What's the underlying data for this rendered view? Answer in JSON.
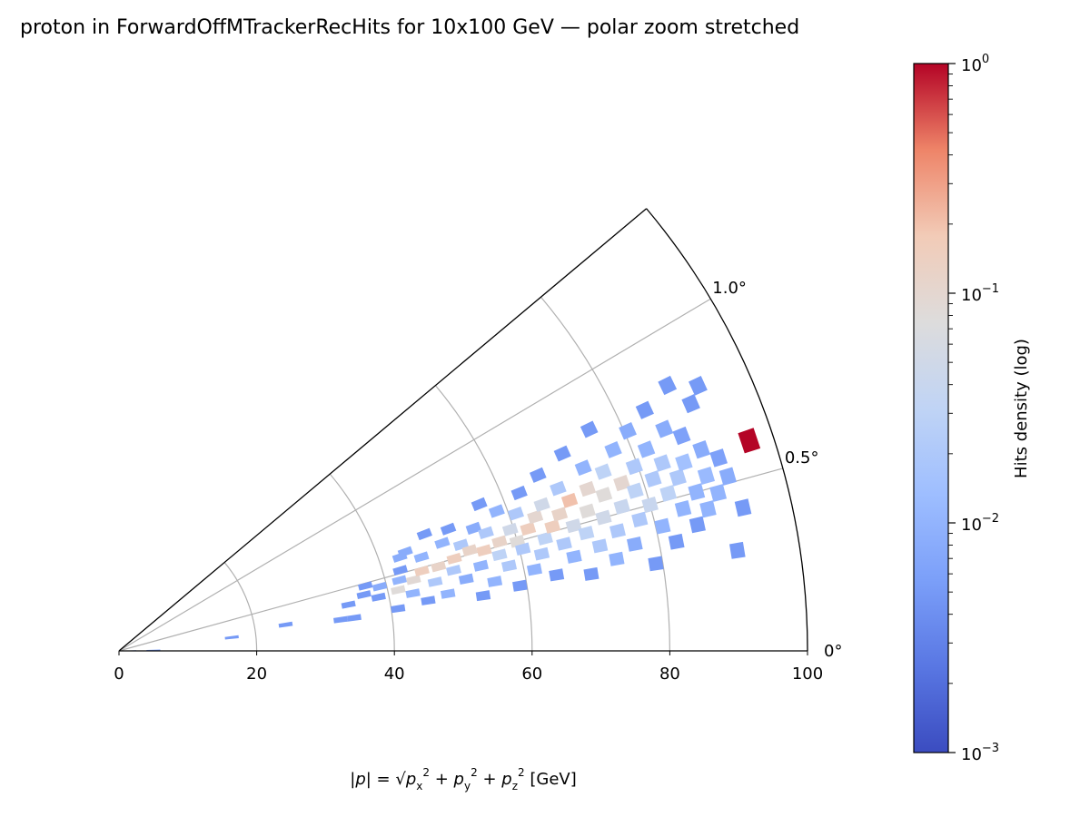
{
  "chart_data": {
    "type": "heatmap",
    "projection": "polar",
    "title": "proton in ForwardOffMTrackerRecHits for 10x100 GeV — polar zoom stretched",
    "xlabel_text": "|p| = √(px² + py² + pz²) [GeV]",
    "r_range": [
      0,
      100
    ],
    "theta_range_deg": [
      0,
      1.3
    ],
    "r_ticks": [
      "0",
      "20",
      "40",
      "60",
      "80",
      "100"
    ],
    "theta_ticks": [
      "0°",
      "0.5°",
      "1.0°"
    ],
    "grid": true,
    "colormap": "coolwarm",
    "colorbar": {
      "label": "Hits density (log)",
      "scale": "log",
      "range": [
        0.001,
        1
      ],
      "tick_labels": [
        "10^-3",
        "10^-2",
        "10^-1",
        "10^0"
      ]
    },
    "cells_r_theta_value": [
      [
        1.5,
        0.05,
        0.004
      ],
      [
        5.0,
        0.04,
        0.005
      ],
      [
        16.5,
        0.22,
        0.005
      ],
      [
        24.5,
        0.29,
        0.005
      ],
      [
        32.5,
        0.26,
        0.005
      ],
      [
        34.5,
        0.26,
        0.005
      ],
      [
        34.0,
        0.37,
        0.005
      ],
      [
        36.5,
        0.42,
        0.005
      ],
      [
        37.0,
        0.48,
        0.005
      ],
      [
        38.5,
        0.38,
        0.005
      ],
      [
        39.0,
        0.45,
        0.008
      ],
      [
        41.0,
        0.28,
        0.005
      ],
      [
        41.5,
        0.4,
        0.08
      ],
      [
        42.0,
        0.46,
        0.01
      ],
      [
        42.5,
        0.52,
        0.005
      ],
      [
        43.0,
        0.6,
        0.008
      ],
      [
        43.5,
        0.36,
        0.01
      ],
      [
        44.0,
        0.44,
        0.09
      ],
      [
        44.0,
        0.62,
        0.008
      ],
      [
        45.5,
        0.3,
        0.005
      ],
      [
        45.5,
        0.48,
        0.15
      ],
      [
        46.0,
        0.56,
        0.01
      ],
      [
        47.0,
        0.4,
        0.02
      ],
      [
        47.5,
        0.68,
        0.005
      ],
      [
        48.0,
        0.48,
        0.12
      ],
      [
        48.5,
        0.32,
        0.01
      ],
      [
        49.5,
        0.6,
        0.01
      ],
      [
        50.0,
        0.44,
        0.02
      ],
      [
        50.5,
        0.5,
        0.15
      ],
      [
        51.0,
        0.66,
        0.005
      ],
      [
        51.5,
        0.38,
        0.008
      ],
      [
        52.0,
        0.56,
        0.02
      ],
      [
        53.0,
        0.52,
        0.12
      ],
      [
        53.5,
        0.28,
        0.005
      ],
      [
        54.0,
        0.43,
        0.01
      ],
      [
        54.5,
        0.62,
        0.008
      ],
      [
        55.0,
        0.5,
        0.15
      ],
      [
        55.5,
        0.34,
        0.01
      ],
      [
        56.0,
        0.58,
        0.02
      ],
      [
        56.5,
        0.72,
        0.005
      ],
      [
        57.0,
        0.46,
        0.03
      ],
      [
        57.5,
        0.52,
        0.12
      ],
      [
        58.0,
        0.4,
        0.02
      ],
      [
        58.5,
        0.66,
        0.01
      ],
      [
        59.0,
        0.3,
        0.005
      ],
      [
        59.5,
        0.56,
        0.05
      ],
      [
        60.0,
        0.5,
        0.08
      ],
      [
        60.5,
        0.46,
        0.02
      ],
      [
        61.0,
        0.62,
        0.02
      ],
      [
        61.5,
        0.36,
        0.01
      ],
      [
        62.0,
        0.54,
        0.15
      ],
      [
        62.5,
        0.7,
        0.005
      ],
      [
        63.0,
        0.42,
        0.02
      ],
      [
        63.5,
        0.58,
        0.1
      ],
      [
        64.0,
        0.48,
        0.03
      ],
      [
        64.5,
        0.32,
        0.005
      ],
      [
        65.0,
        0.62,
        0.05
      ],
      [
        65.5,
        0.52,
        0.15
      ],
      [
        66.0,
        0.74,
        0.005
      ],
      [
        66.5,
        0.44,
        0.02
      ],
      [
        67.0,
        0.56,
        0.12
      ],
      [
        67.5,
        0.38,
        0.01
      ],
      [
        68.0,
        0.66,
        0.02
      ],
      [
        68.5,
        0.5,
        0.05
      ],
      [
        69.0,
        0.6,
        0.2
      ],
      [
        69.5,
        0.3,
        0.005
      ],
      [
        70.0,
        0.46,
        0.03
      ],
      [
        70.5,
        0.78,
        0.005
      ],
      [
        71.0,
        0.54,
        0.08
      ],
      [
        71.5,
        0.4,
        0.02
      ],
      [
        72.0,
        0.62,
        0.1
      ],
      [
        72.5,
        0.7,
        0.01
      ],
      [
        73.0,
        0.5,
        0.05
      ],
      [
        73.5,
        0.34,
        0.01
      ],
      [
        74.0,
        0.58,
        0.08
      ],
      [
        74.5,
        0.44,
        0.02
      ],
      [
        75.0,
        0.66,
        0.03
      ],
      [
        75.5,
        0.82,
        0.005
      ],
      [
        76.0,
        0.52,
        0.04
      ],
      [
        76.5,
        0.38,
        0.008
      ],
      [
        77.0,
        0.6,
        0.1
      ],
      [
        77.5,
        0.72,
        0.01
      ],
      [
        78.0,
        0.46,
        0.02
      ],
      [
        78.5,
        0.56,
        0.03
      ],
      [
        79.0,
        0.3,
        0.005
      ],
      [
        79.5,
        0.64,
        0.02
      ],
      [
        80.0,
        0.5,
        0.04
      ],
      [
        80.5,
        0.76,
        0.008
      ],
      [
        81.0,
        0.42,
        0.01
      ],
      [
        81.5,
        0.58,
        0.02
      ],
      [
        82.0,
        0.68,
        0.01
      ],
      [
        82.5,
        0.36,
        0.005
      ],
      [
        83.0,
        0.52,
        0.03
      ],
      [
        83.5,
        0.62,
        0.02
      ],
      [
        84.0,
        0.8,
        0.005
      ],
      [
        84.5,
        0.46,
        0.01
      ],
      [
        85.0,
        0.56,
        0.02
      ],
      [
        85.5,
        0.72,
        0.008
      ],
      [
        86.0,
        0.4,
        0.005
      ],
      [
        86.5,
        0.6,
        0.015
      ],
      [
        87.0,
        0.5,
        0.01
      ],
      [
        87.5,
        0.68,
        0.006
      ],
      [
        88.0,
        0.44,
        0.01
      ],
      [
        88.5,
        0.84,
        0.005
      ],
      [
        89.0,
        0.54,
        0.012
      ],
      [
        89.5,
        0.62,
        0.008
      ],
      [
        90.0,
        0.48,
        0.01
      ],
      [
        90.5,
        0.76,
        0.005
      ],
      [
        91.0,
        0.3,
        0.005
      ],
      [
        91.5,
        0.58,
        0.006
      ],
      [
        92.0,
        0.52,
        0.008
      ],
      [
        92.5,
        0.8,
        0.005
      ],
      [
        93.0,
        0.42,
        0.005
      ],
      [
        96.5,
        0.6,
        1.0
      ]
    ]
  }
}
